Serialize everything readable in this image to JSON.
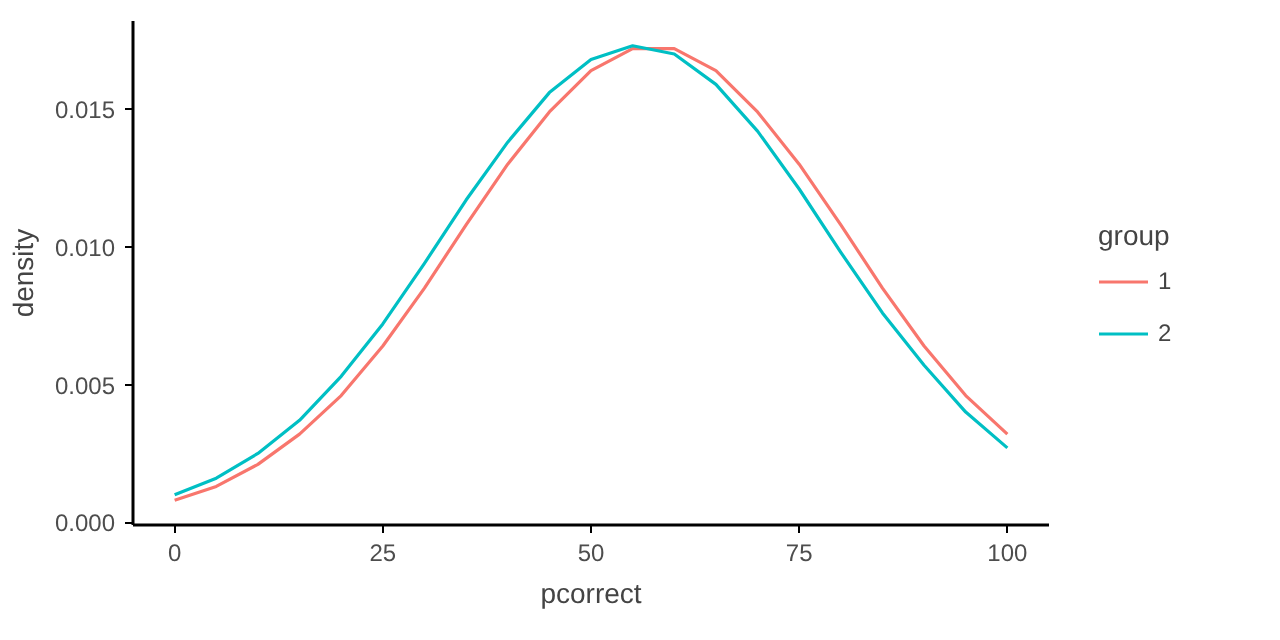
{
  "chart_data": {
    "type": "line",
    "xlabel": "pcorrect",
    "ylabel": "density",
    "legend_title": "group",
    "x": [
      0,
      5,
      10,
      15,
      20,
      25,
      30,
      35,
      40,
      45,
      50,
      55,
      60,
      65,
      70,
      75,
      80,
      85,
      90,
      95,
      100
    ],
    "series": [
      {
        "name": "1",
        "color": "#f8766d",
        "values": [
          0.0008,
          0.0013,
          0.0021,
          0.0032,
          0.0046,
          0.0064,
          0.0085,
          0.0108,
          0.013,
          0.0149,
          0.0164,
          0.0172,
          0.0172,
          0.0164,
          0.0149,
          0.013,
          0.0108,
          0.0085,
          0.0064,
          0.0046,
          0.0032
        ]
      },
      {
        "name": "2",
        "color": "#00bfc4",
        "values": [
          0.001,
          0.0016,
          0.0025,
          0.0037,
          0.0053,
          0.0072,
          0.0094,
          0.0117,
          0.0138,
          0.0156,
          0.0168,
          0.0173,
          0.017,
          0.0159,
          0.0142,
          0.0121,
          0.0098,
          0.0076,
          0.0057,
          0.004,
          0.0027
        ]
      }
    ],
    "xlim": [
      -5,
      105
    ],
    "ylim": [
      -0.0001,
      0.0182
    ],
    "xticks": [
      0,
      25,
      50,
      75,
      100
    ],
    "yticks": [
      {
        "value": 0,
        "label": "0.000"
      },
      {
        "value": 0.005,
        "label": "0.005"
      },
      {
        "value": 0.01,
        "label": "0.010"
      },
      {
        "value": 0.015,
        "label": "0.015"
      }
    ],
    "grid": false,
    "legend": "right",
    "marker": "none",
    "line_style": "solid"
  }
}
